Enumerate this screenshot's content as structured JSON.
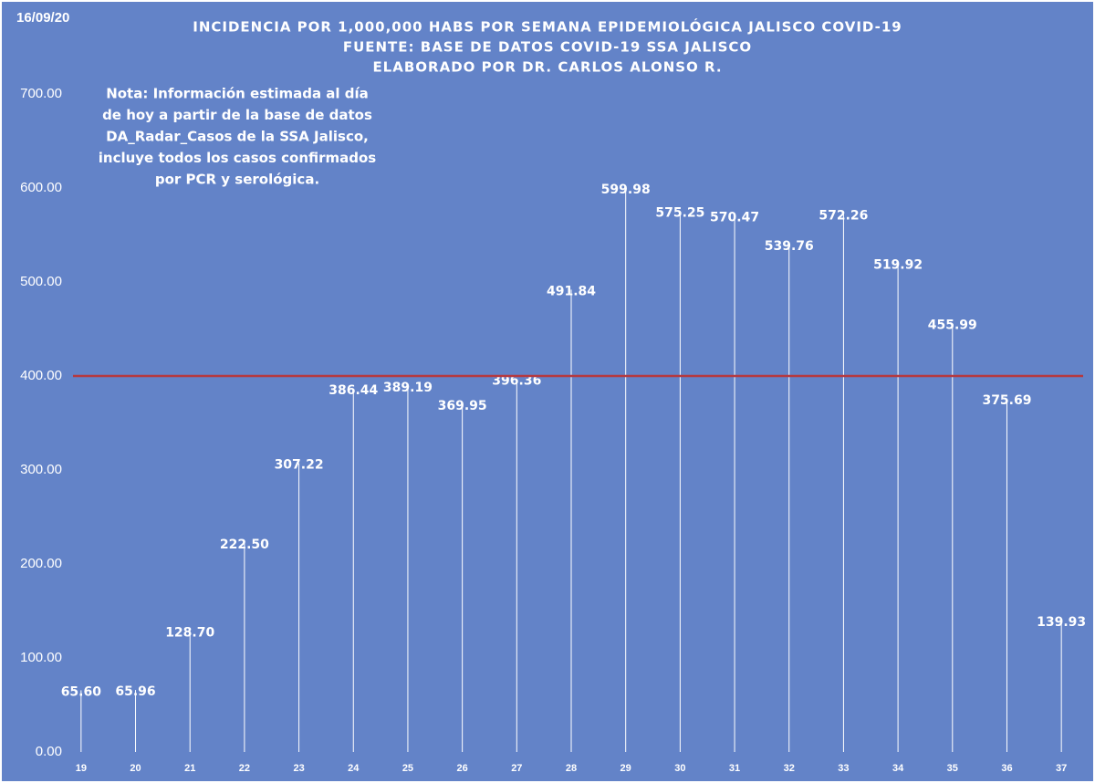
{
  "chart_data": {
    "type": "stem",
    "date": "16/09/20",
    "title": [
      "INCIDENCIA POR 1,000,000 HABS POR SEMANA EPIDEMIOLÓGICA JALISCO COVID-19",
      "FUENTE: BASE DE DATOS COVID-19 SSA JALISCO",
      "ELABORADO POR DR. CARLOS ALONSO R."
    ],
    "annotation": [
      "Nota: Información estimada al día",
      "de hoy a partir de la base de datos",
      "DA_Radar_Casos de la SSA Jalisco,",
      "incluye todos los casos confirmados",
      "por PCR y serológica."
    ],
    "categories": [
      "19",
      "20",
      "21",
      "22",
      "23",
      "24",
      "25",
      "26",
      "27",
      "28",
      "29",
      "30",
      "31",
      "32",
      "33",
      "34",
      "35",
      "36",
      "37"
    ],
    "values": [
      65.6,
      65.96,
      128.7,
      222.5,
      307.22,
      386.44,
      389.19,
      369.95,
      396.36,
      491.84,
      599.98,
      575.25,
      570.47,
      539.76,
      572.26,
      519.92,
      455.99,
      375.69,
      139.93
    ],
    "value_labels": [
      "65.60",
      "65.96",
      "128.70",
      "222.50",
      "307.22",
      "386.44",
      "389.19",
      "369.95",
      "396.36",
      "491.84",
      "599.98",
      "575.25",
      "570.47",
      "539.76",
      "572.26",
      "519.92",
      "455.99",
      "375.69",
      "139.93"
    ],
    "color": "#ffffff",
    "reference_line": {
      "value": 400,
      "color": "#b5393f"
    },
    "ylim": [
      0,
      700
    ],
    "yticks": [
      {
        "value": 0,
        "label": "0.00"
      },
      {
        "value": 100,
        "label": "100.00"
      },
      {
        "value": 200,
        "label": "200.00"
      },
      {
        "value": 300,
        "label": "300.00"
      },
      {
        "value": 400,
        "label": "400.00"
      },
      {
        "value": 500,
        "label": "500.00"
      },
      {
        "value": 600,
        "label": "600.00"
      },
      {
        "value": 700,
        "label": "700.00"
      }
    ],
    "grid": false
  }
}
